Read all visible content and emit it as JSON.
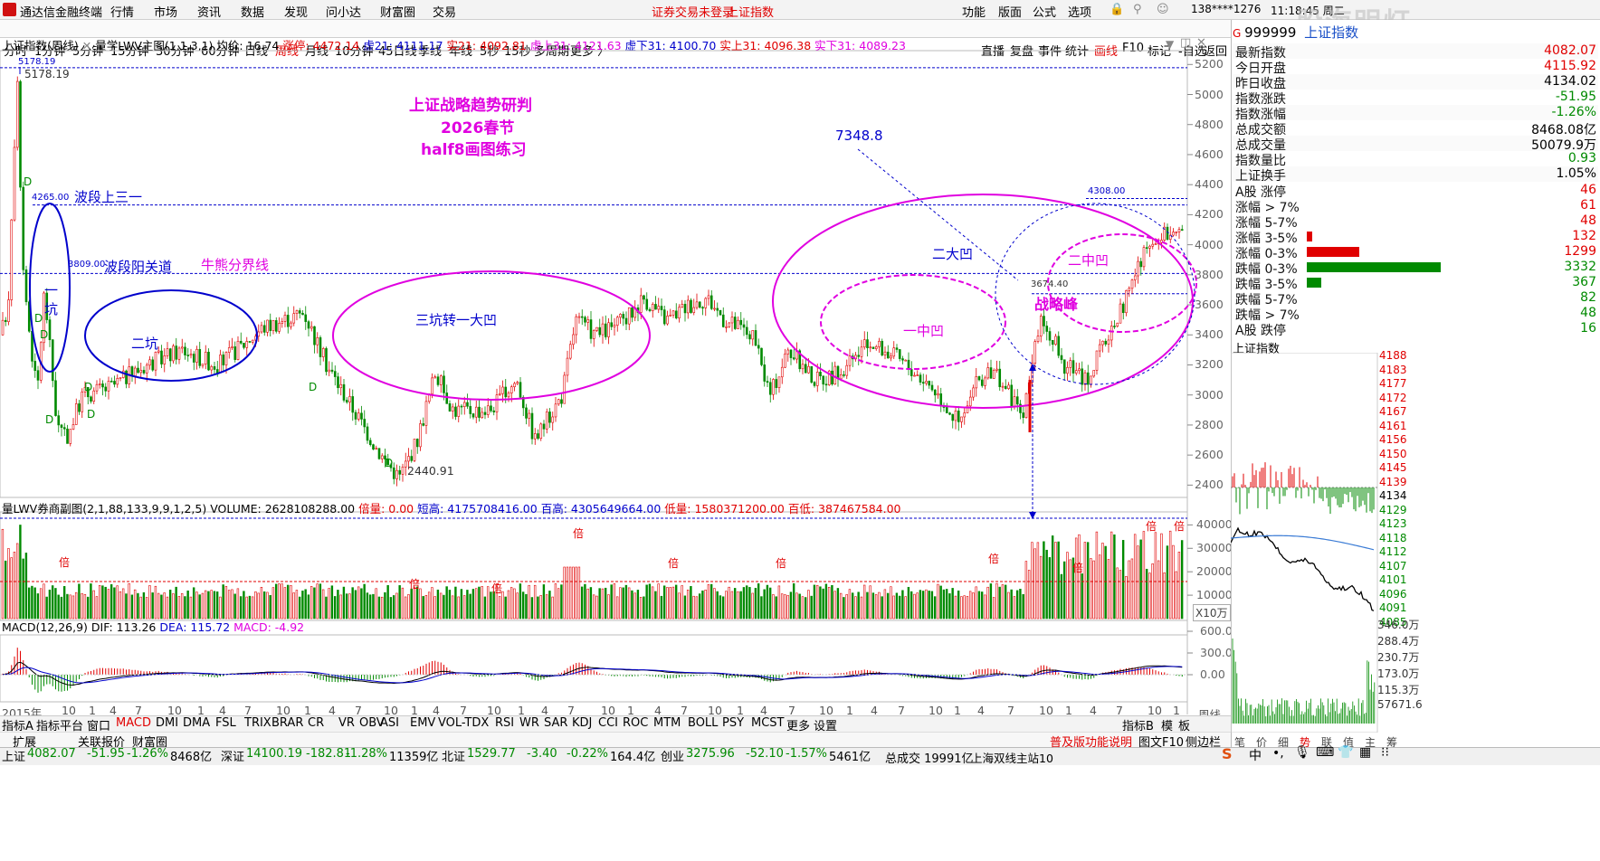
{
  "app": {
    "title": "通达信金融终端",
    "menu": [
      "行情",
      "市场",
      "资讯",
      "数据",
      "发现",
      "问小达",
      "财富圈",
      "交易"
    ],
    "notice": "证券交易未登录",
    "notice2": "上证指数",
    "right_menu": [
      "功能",
      "版面",
      "公式",
      "选项"
    ],
    "account": "138****1276",
    "time": "11:18:45 周二",
    "watermark": "股海明灯"
  },
  "periods": [
    "分时",
    "1分钟",
    "5分钟",
    "15分钟",
    "30分钟",
    "60分钟",
    "日线",
    "周线",
    "月线",
    "10分钟",
    "45日线",
    "季线",
    "年线",
    "5秒",
    "15秒",
    "多周期",
    "更多 〉"
  ],
  "active_period": "周线",
  "tools": [
    "直播",
    "复盘",
    "事件",
    "统计",
    "画线",
    "F10",
    "标记",
    "-自选",
    "返回"
  ],
  "main_info": {
    "title": "上证指数(周线)",
    "formula": "量学LWV主图(1,1,3,1)",
    "avg": "均价: 16.74",
    "zt": "涨停: 4472.14",
    "xu21": "虚21: 4111.17",
    "shi21": "实21: 4092.81",
    "xushang": "虚上31: 4121.63",
    "xuxia": "虚下31: 4100.70",
    "shishang": "实上31: 4096.38",
    "shixia": "实下31: 4089.23"
  },
  "main_yaxis": [
    "5200",
    "5000",
    "4800",
    "4600",
    "4400",
    "4200",
    "4000",
    "3800",
    "3600",
    "3400",
    "3200",
    "3000",
    "2800",
    "2600",
    "2400"
  ],
  "annotations": {
    "study_title": "上证战略趋势研判",
    "study_year": "2026春节",
    "study_author": "half8画图练习",
    "high_label": "5178.19",
    "high_label2": "5178.19",
    "line4265": "4265.00",
    "wave_up": "波段上三一",
    "line3809": "3809.00",
    "wave_yang": "波段阳关道",
    "bull_bear": "牛熊分界线",
    "pit1a": "一",
    "pit1b": "坑",
    "pit2": "二坑",
    "pit3": "三坑转一大凹",
    "low_label": "2440.91",
    "target": "7348.8",
    "big2": "二大凹",
    "mid1": "一中凹",
    "mid2": "二中凹",
    "peak": "战略峰",
    "peak_price": "3674.40",
    "level4308": "4308.00",
    "d_mark": "D",
    "bei": "倍"
  },
  "sub_info": {
    "title": "量LWV券商副图(2,1,88,133,9,9,1,2,5)",
    "volume": "VOLUME: 2628108288.00",
    "beiliang": "倍量: 0.00",
    "duangao": "短高: 4175708416.00",
    "baigao": "百高: 4305649664.00",
    "diliang": "低量: 1580371200.00",
    "baidi": "百低: 387467584.00",
    "unit": "X10万"
  },
  "sub_yaxis": [
    "40000",
    "30000",
    "20000",
    "10000"
  ],
  "macd_info": {
    "title": "MACD(12,26,9)",
    "dif": "DIF: 113.26",
    "dea": "DEA: 115.72",
    "macd": "MACD: -4.92"
  },
  "macd_yaxis": [
    "600.0",
    "300.0",
    "0.00"
  ],
  "xaxis": [
    "2015年",
    "10",
    "1",
    "4",
    "7",
    "10",
    "1",
    "4",
    "7",
    "10",
    "1",
    "4",
    "7",
    "10",
    "1",
    "4",
    "7",
    "10",
    "1",
    "4",
    "7",
    "10",
    "1",
    "4",
    "7",
    "10",
    "1",
    "4",
    "7",
    "10",
    "1",
    "4",
    "7",
    "10",
    "1",
    "4",
    "7",
    "10",
    "1",
    "4",
    "7",
    "10",
    "1"
  ],
  "xaxis_right": "周线",
  "indicator_tabs": [
    "指标A",
    "指标平台",
    "窗口",
    "MACD",
    "DMI",
    "DMA",
    "FSL",
    "TRIX",
    "BRAR",
    "CR",
    "VR",
    "OBV",
    "ASI",
    "EMV",
    "VOL-TDX",
    "RSI",
    "WR",
    "SAR",
    "KDJ",
    "CCI",
    "ROC",
    "MTM",
    "BOLL",
    "PSY",
    "MCST",
    "更多",
    "设置"
  ],
  "active_indicator": "MACD",
  "indicator_right": [
    "指标B",
    "模",
    "板"
  ],
  "bottom_tabs": [
    "扩展",
    "关联报价",
    "财富圈"
  ],
  "quote_panel": {
    "code": "999999",
    "name": "上证指数",
    "rows": [
      {
        "k": "最新指数",
        "v": "4082.07",
        "c": "#e00000"
      },
      {
        "k": "今日开盘",
        "v": "4115.92",
        "c": "#e00000"
      },
      {
        "k": "昨日收盘",
        "v": "4134.02",
        "c": "#000000"
      },
      {
        "k": "指数涨跌",
        "v": "-51.95",
        "c": "#008a00"
      },
      {
        "k": "指数涨幅",
        "v": "-1.26%",
        "c": "#008a00"
      },
      {
        "k": "总成交额",
        "v": "8468.08亿",
        "c": "#000000"
      },
      {
        "k": "总成交量",
        "v": "50079.9万",
        "c": "#000000"
      },
      {
        "k": "指数量比",
        "v": "0.93",
        "c": "#008a00"
      },
      {
        "k": "上证换手",
        "v": "1.05%",
        "c": "#000000"
      }
    ],
    "breadth": [
      {
        "k": "A股 涨停",
        "v": "46",
        "bar": 0,
        "c": "#e00000"
      },
      {
        "k": "涨幅 > 7%",
        "v": "61",
        "bar": 0,
        "c": "#e00000"
      },
      {
        "k": "涨幅 5-7%",
        "v": "48",
        "bar": 0,
        "c": "#e00000"
      },
      {
        "k": "涨幅 3-5%",
        "v": "132",
        "bar": 0.04,
        "c": "#e00000"
      },
      {
        "k": "涨幅 0-3%",
        "v": "1299",
        "bar": 0.39,
        "c": "#e00000"
      },
      {
        "k": "跌幅 0-3%",
        "v": "3332",
        "bar": 1.0,
        "c": "#008a00"
      },
      {
        "k": "跌幅 3-5%",
        "v": "367",
        "bar": 0.11,
        "c": "#008a00"
      },
      {
        "k": "跌幅 5-7%",
        "v": "82",
        "bar": 0,
        "c": "#008a00"
      },
      {
        "k": "跌幅 > 7%",
        "v": "48",
        "bar": 0,
        "c": "#008a00"
      },
      {
        "k": "A股 跌停",
        "v": "16",
        "bar": 0,
        "c": "#008a00"
      }
    ],
    "mini_title": "上证指数",
    "mini_yaxis": [
      "4188",
      "4183",
      "4177",
      "4172",
      "4167",
      "4161",
      "4156",
      "4150",
      "4145",
      "4139",
      "4134",
      "4129",
      "4123",
      "4118",
      "4112",
      "4107",
      "4101",
      "4096",
      "4091",
      "4085"
    ],
    "mini_vol": [
      "346.0万",
      "288.4万",
      "230.7万",
      "173.0万",
      "115.3万",
      "57671.6"
    ],
    "mini_tabs": [
      "笔",
      "价",
      "细",
      "势",
      "联",
      "值",
      "主",
      "筹"
    ]
  },
  "status": {
    "items": [
      {
        "k": "上证",
        "v": "4082.07",
        "c": "-51.95",
        "p": "-1.26%",
        "a": "8468亿"
      },
      {
        "k": "深证",
        "v": "14100.19",
        "c": "-182.81",
        "p": "-1.28%",
        "a": "11359亿"
      },
      {
        "k": "北证",
        "v": "1529.77",
        "c": "-3.40",
        "p": "-0.22%",
        "a": "164.4亿"
      },
      {
        "k": "创业",
        "v": "3275.96",
        "c": "-52.10",
        "p": "-1.57%",
        "a": "5461亿"
      }
    ],
    "total": "总成交 19991亿",
    "server": "上海双线主站10",
    "promo": "普及版功能说明",
    "f10": "图文F10",
    "side": "侧边栏"
  },
  "colors": {
    "up": "#e00000",
    "down": "#008a00",
    "blue": "#0000cc",
    "magenta": "#e000e0",
    "bg": "#ffffff"
  }
}
